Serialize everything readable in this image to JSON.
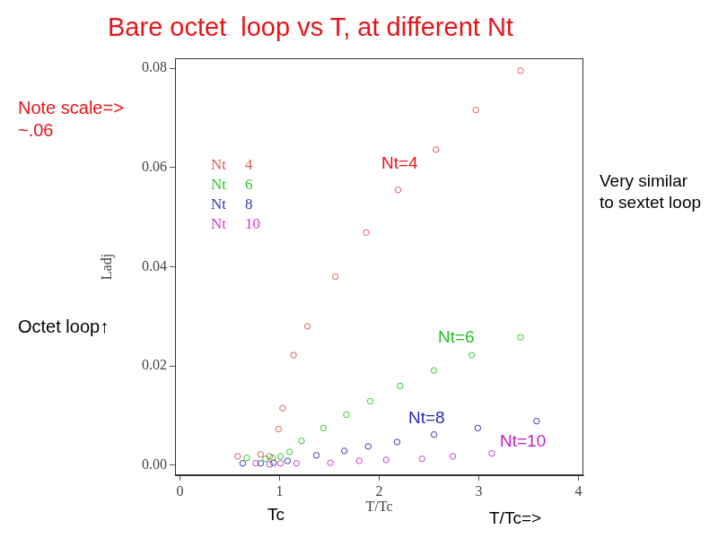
{
  "chart_data": {
    "type": "scatter",
    "title": "Bare octet  loop vs T, at different Nt",
    "x_label": "T/Tc",
    "y_label": "Ladj",
    "xlim": [
      -0.05,
      4.05
    ],
    "ylim": [
      -0.002,
      0.082
    ],
    "xticks": [
      0,
      1,
      2,
      3,
      4
    ],
    "yticks": [
      {
        "value": 0,
        "label": "0.00"
      },
      0.02,
      0.04,
      0.06,
      0.08
    ],
    "grid": false,
    "legend": "upper left",
    "marker": "circle",
    "series": [
      {
        "name": "Nt  4",
        "color": "#e05a5a",
        "x": [
          0.58,
          0.81,
          0.9,
          0.99,
          1.03,
          1.14,
          1.28,
          1.56,
          1.87,
          2.19,
          2.57,
          2.97,
          3.42
        ],
        "values": [
          0.0018,
          0.0022,
          0.0018,
          0.0073,
          0.0115,
          0.0222,
          0.028,
          0.038,
          0.0469,
          0.0555,
          0.0636,
          0.0716,
          0.0795
        ]
      },
      {
        "name": "Nt  6",
        "color": "#2ec82e",
        "x": [
          0.67,
          0.86,
          0.93,
          1.01,
          1.1,
          1.22,
          1.44,
          1.67,
          1.91,
          2.21,
          2.55,
          2.93,
          3.42
        ],
        "values": [
          0.0015,
          0.0013,
          0.0015,
          0.0018,
          0.0027,
          0.0049,
          0.0075,
          0.0102,
          0.0129,
          0.016,
          0.0191,
          0.0222,
          0.0258
        ]
      },
      {
        "name": "Nt  8",
        "color": "#3535b5",
        "x": [
          0.63,
          0.81,
          0.94,
          1.08,
          1.37,
          1.65,
          1.89,
          2.18,
          2.55,
          2.99,
          3.58
        ],
        "values": [
          0.0004,
          0.0004,
          0.0005,
          0.0009,
          0.002,
          0.0029,
          0.0038,
          0.0047,
          0.0062,
          0.0075,
          0.0089
        ]
      },
      {
        "name": "Nt  10",
        "color": "#d23ad2",
        "x": [
          0.76,
          0.9,
          1.01,
          1.17,
          1.51,
          1.8,
          2.07,
          2.43,
          2.74,
          3.13
        ],
        "values": [
          0.0004,
          0.0002,
          0.0004,
          0.0004,
          0.0005,
          0.0009,
          0.0011,
          0.0013,
          0.0018,
          0.0024
        ]
      }
    ],
    "annotations": [
      {
        "text": "Note scale=> ~.06"
      },
      {
        "text": "Very similar to sextet loop"
      },
      {
        "text": "Octet loop↑"
      },
      {
        "text": "Nt=4"
      },
      {
        "text": "Nt=6"
      },
      {
        "text": "Nt=8"
      },
      {
        "text": "Nt=10"
      },
      {
        "text": "Tc"
      },
      {
        "text": "T/Tc=>"
      }
    ]
  }
}
